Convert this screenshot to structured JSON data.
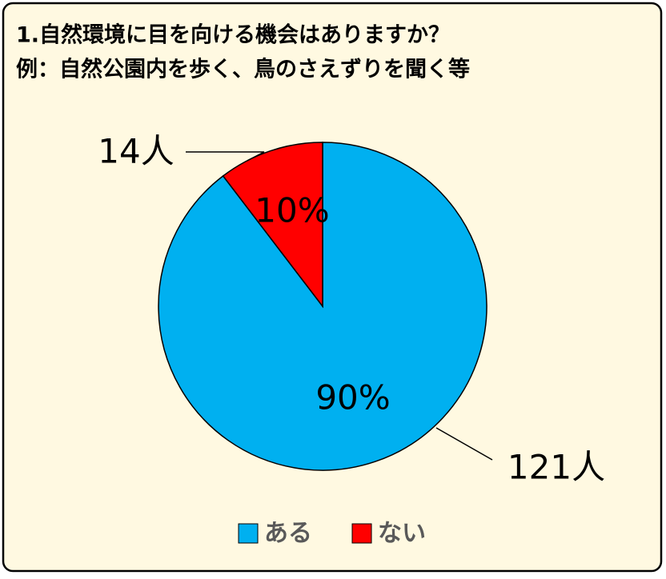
{
  "chart_data": {
    "type": "pie",
    "title": "1.自然環境に目を向ける機会はありますか？",
    "subtitle": "例：自然公園内を歩く、鳥のさえずりを聞く等",
    "categories": [
      "ある",
      "ない"
    ],
    "values": [
      121,
      14
    ],
    "value_labels": [
      "121人",
      "14人"
    ],
    "percents": [
      90,
      10
    ],
    "percent_labels": [
      "90%",
      "10%"
    ],
    "colors": [
      "#00b0f0",
      "#ff0000"
    ],
    "legend": "bottom"
  }
}
